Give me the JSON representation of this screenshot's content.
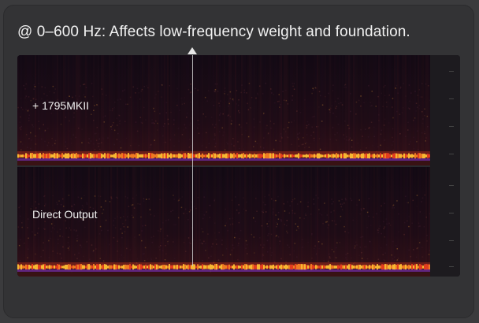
{
  "caption": "@ 0–600 Hz: Affects low-frequency weight and foundation.",
  "panels": [
    {
      "label": "+ 1795MKII"
    },
    {
      "label": "Direct Output"
    }
  ],
  "icons": {
    "marker": "up-arrow-icon"
  },
  "colors": {
    "background": "#3b3b3d",
    "card": "#333335",
    "spectrogram_base": "#0f0a12",
    "hot_band": "#f5a623",
    "band_core": "#e23d1f",
    "band_tint": "#6a2a9a"
  }
}
